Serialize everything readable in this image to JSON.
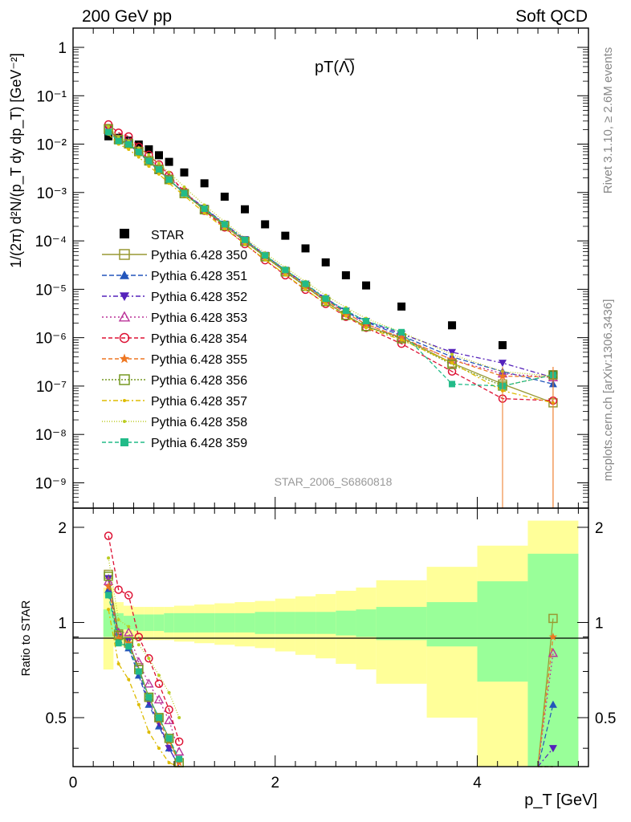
{
  "header": {
    "left": "200 GeV pp",
    "right": "Soft QCD",
    "side_rivet": "Rivet 3.1.10, ≥ 2.6M events",
    "side_mcplots": "mcplots.cern.ch [arXiv:1306.3436]"
  },
  "chart_data": {
    "type": "scatter",
    "title": "pT(Λ̅)",
    "analysis_label": "STAR_2006_S6860818",
    "xlabel": "p_T [GeV]",
    "ylabel": "1/(2π) d²N/(p_T dy dp_T) [GeV⁻²]",
    "ratio_ylabel": "Ratio to STAR",
    "xlim": [
      0,
      5.1
    ],
    "ylim": [
      3e-10,
      2.5
    ],
    "yscale": "log",
    "ratio_ylim": [
      0.35,
      2.3
    ],
    "x_ticks": [
      "0",
      "2",
      "4"
    ],
    "y_ticks": [
      "1",
      "10⁻¹",
      "10⁻²",
      "10⁻³",
      "10⁻⁴",
      "10⁻⁵",
      "10⁻⁶",
      "10⁻⁷",
      "10⁻⁸",
      "10⁻⁹"
    ],
    "ratio_ticks": [
      "0.5",
      "1",
      "2"
    ],
    "legend_position": "middle-left",
    "x": [
      0.35,
      0.45,
      0.55,
      0.65,
      0.75,
      0.85,
      0.95,
      1.1,
      1.3,
      1.5,
      1.7,
      1.9,
      2.1,
      2.3,
      2.5,
      2.7,
      2.9,
      3.25,
      3.75,
      4.25,
      4.75
    ],
    "reference": {
      "name": "STAR",
      "values": [
        0.0145,
        0.0135,
        0.0118,
        0.0098,
        0.0078,
        0.0059,
        0.0043,
        0.0026,
        0.00155,
        0.00082,
        0.00045,
        0.00022,
        0.000128,
        7e-05,
        3.6e-05,
        1.95e-05,
        1.2e-05,
        4.4e-06,
        1.8e-06,
        7e-07,
        1.75e-07
      ]
    },
    "ratio_band": {
      "x_edges": [
        0.3,
        0.4,
        0.5,
        0.6,
        0.7,
        0.8,
        0.9,
        1.0,
        1.2,
        1.4,
        1.6,
        1.8,
        2.0,
        2.2,
        2.4,
        2.6,
        2.8,
        3.0,
        3.5,
        4.0,
        4.5,
        5.0
      ],
      "green_half": [
        0.1,
        0.07,
        0.05,
        0.06,
        0.06,
        0.06,
        0.07,
        0.07,
        0.07,
        0.07,
        0.07,
        0.08,
        0.08,
        0.08,
        0.08,
        0.09,
        0.1,
        0.12,
        0.16,
        0.35,
        0.65
      ],
      "yellow_half": [
        0.29,
        0.16,
        0.13,
        0.12,
        0.12,
        0.12,
        0.12,
        0.13,
        0.14,
        0.15,
        0.16,
        0.17,
        0.19,
        0.21,
        0.23,
        0.26,
        0.29,
        0.36,
        0.5,
        0.75,
        1.1
      ]
    },
    "ratio_lines": [
      {
        "name": "Pythia 6.428 350",
        "x": [
          0.35,
          0.45,
          0.55,
          0.65,
          0.75,
          0.85,
          0.95,
          1.05
        ],
        "values": [
          1.42,
          0.92,
          0.86,
          0.72,
          0.58,
          0.5,
          0.43,
          0.36
        ],
        "tail": 1.03
      },
      {
        "name": "Pythia 6.428 351",
        "x": [
          0.35,
          0.45,
          0.55,
          0.65,
          0.75,
          0.85,
          0.95,
          1.05
        ],
        "values": [
          1.27,
          0.88,
          0.83,
          0.68,
          0.55,
          0.47,
          0.4,
          0.34
        ],
        "tail": 0.55
      },
      {
        "name": "Pythia 6.428 352",
        "x": [
          0.35,
          0.45,
          0.55,
          0.65,
          0.75,
          0.85,
          0.95,
          1.05
        ],
        "values": [
          1.38,
          0.9,
          0.88,
          0.7,
          0.56,
          0.48,
          0.4,
          0.34
        ],
        "tail": 0.4
      },
      {
        "name": "Pythia 6.428 353",
        "x": [
          0.35,
          0.45,
          0.55,
          0.65,
          0.75,
          0.85,
          0.95,
          1.05
        ],
        "values": [
          1.35,
          0.93,
          0.93,
          0.75,
          0.64,
          0.57,
          0.49,
          0.39
        ],
        "tail": 0.8
      },
      {
        "name": "Pythia 6.428 354",
        "x": [
          0.35,
          0.45,
          0.55,
          0.65,
          0.75,
          0.85,
          0.95,
          1.05
        ],
        "values": [
          1.88,
          1.27,
          1.22,
          0.9,
          0.77,
          0.64,
          0.53,
          0.42
        ],
        "tail": 0.3
      },
      {
        "name": "Pythia 6.428 355",
        "x": [
          0.35,
          0.45,
          0.55,
          0.65,
          0.75,
          0.85,
          0.95,
          1.05
        ],
        "values": [
          1.3,
          0.9,
          0.86,
          0.7,
          0.58,
          0.49,
          0.42,
          0.36
        ],
        "tail": 0.9
      },
      {
        "name": "Pythia 6.428 356",
        "x": [
          0.35,
          0.45,
          0.55,
          0.65,
          0.75,
          0.85,
          0.95,
          1.05
        ],
        "values": [
          1.4,
          0.91,
          0.87,
          0.71,
          0.58,
          0.5,
          0.43,
          0.36
        ],
        "tail": 0.3
      },
      {
        "name": "Pythia 6.428 357",
        "x": [
          0.35,
          0.45,
          0.55,
          0.65,
          0.75,
          0.85,
          0.95,
          1.05
        ],
        "values": [
          1.1,
          0.74,
          0.66,
          0.55,
          0.45,
          0.4,
          0.36,
          0.33
        ],
        "tail": 0.3
      },
      {
        "name": "Pythia 6.428 358",
        "x": [
          0.35,
          0.45,
          0.55,
          0.65,
          0.75,
          0.85,
          0.95,
          1.05
        ],
        "values": [
          1.6,
          1.02,
          0.97,
          0.85,
          0.77,
          0.68,
          0.6,
          0.5
        ],
        "tail": 0.3
      },
      {
        "name": "Pythia 6.428 359",
        "x": [
          0.35,
          0.45,
          0.55,
          0.65,
          0.75,
          0.85,
          0.95,
          1.05
        ],
        "values": [
          1.22,
          0.86,
          0.84,
          0.7,
          0.58,
          0.5,
          0.43,
          0.37
        ],
        "tail": 0.3
      }
    ],
    "series": [
      {
        "name": "Pythia 6.428 350",
        "color": "#999933",
        "marker": "square-open",
        "dash": "",
        "values": [
          0.021,
          0.0125,
          0.0101,
          0.0071,
          0.0045,
          0.003,
          0.00185,
          0.00095,
          0.00044,
          0.000205,
          9.8e-05,
          4.7e-05,
          2.3e-05,
          1.15e-05,
          5.6e-06,
          2.9e-06,
          1.7e-06,
          1e-06,
          3e-07,
          1.1e-07,
          4.5e-08
        ]
      },
      {
        "name": "Pythia 6.428 351",
        "color": "#2255bb",
        "marker": "triangle-up",
        "dash": "6,3",
        "values": [
          0.0185,
          0.0119,
          0.0098,
          0.0067,
          0.0043,
          0.0028,
          0.0018,
          0.00098,
          0.00047,
          0.00022,
          0.000105,
          5e-05,
          2.5e-05,
          1.25e-05,
          6.2e-06,
          3.4e-06,
          2.1e-06,
          1.1e-06,
          4e-07,
          2e-07,
          1.1e-07
        ]
      },
      {
        "name": "Pythia 6.428 352",
        "color": "#5522bb",
        "marker": "triangle-down",
        "dash": "6,3,2,3",
        "values": [
          0.02,
          0.0122,
          0.0104,
          0.0069,
          0.0044,
          0.0029,
          0.00182,
          0.001,
          0.00048,
          0.000225,
          0.000108,
          5.1e-05,
          2.5e-05,
          1.3e-05,
          6.5e-06,
          3.6e-06,
          2.2e-06,
          1.2e-06,
          5e-07,
          3e-07,
          1.5e-07
        ]
      },
      {
        "name": "Pythia 6.428 353",
        "color": "#bb3399",
        "marker": "triangle-open",
        "dash": "2,3",
        "values": [
          0.0195,
          0.0125,
          0.011,
          0.0074,
          0.005,
          0.0034,
          0.0021,
          0.00105,
          0.00045,
          0.000215,
          0.0001,
          4.9e-05,
          2.4e-05,
          1.2e-05,
          6e-06,
          3.2e-06,
          1.9e-06,
          1e-06,
          3.5e-07,
          1.8e-07,
          1.5e-07
        ]
      },
      {
        "name": "Pythia 6.428 354",
        "color": "#dd1133",
        "marker": "circle-open",
        "dash": "5,3",
        "values": [
          0.0255,
          0.0172,
          0.0144,
          0.0088,
          0.006,
          0.0038,
          0.0023,
          0.00105,
          0.00042,
          0.00019,
          8.6e-05,
          4e-05,
          1.95e-05,
          9.8e-06,
          5e-06,
          2.7e-06,
          1.6e-06,
          7.5e-07,
          2e-07,
          5.5e-08,
          5e-08
        ]
      },
      {
        "name": "Pythia 6.428 355",
        "color": "#ee7722",
        "marker": "star",
        "dash": "5,3",
        "values": [
          0.0188,
          0.0122,
          0.0101,
          0.0069,
          0.0045,
          0.0029,
          0.00181,
          0.00096,
          0.00046,
          0.000215,
          0.000103,
          4.9e-05,
          2.4e-05,
          1.2e-05,
          6e-06,
          3.2e-06,
          1.9e-06,
          1e-06,
          3.5e-07,
          1.6e-07,
          1.55e-07
        ]
      },
      {
        "name": "Pythia 6.428 356",
        "color": "#779922",
        "marker": "square-open",
        "dash": "2,2",
        "values": [
          0.0203,
          0.0123,
          0.0102,
          0.007,
          0.0045,
          0.003,
          0.00185,
          0.00095,
          0.00044,
          0.000205,
          9.8e-05,
          4.7e-05,
          2.3e-05,
          1.15e-05,
          5.6e-06,
          2.9e-06,
          1.7e-06,
          9.5e-07,
          2.8e-07,
          1e-07,
          1.7e-07
        ]
      },
      {
        "name": "Pythia 6.428 357",
        "color": "#ddbb00",
        "marker": "dot",
        "dash": "6,3,2,3",
        "values": [
          0.016,
          0.01,
          0.0078,
          0.0054,
          0.0035,
          0.0024,
          0.00155,
          0.00086,
          0.00038,
          0.00018,
          8.6e-05,
          4.1e-05,
          2e-05,
          1e-05,
          5e-06,
          2.8e-06,
          1.6e-06,
          9e-07,
          3e-07,
          8e-08,
          4.5e-08
        ]
      },
      {
        "name": "Pythia 6.428 358",
        "color": "#bbcc22",
        "marker": "dot",
        "dash": "1,2",
        "values": [
          0.023,
          0.0138,
          0.0115,
          0.0083,
          0.006,
          0.004,
          0.0026,
          0.0013,
          0.00055,
          0.00025,
          0.000115,
          5.6e-05,
          2.8e-05,
          1.45e-05,
          7.5e-06,
          4.2e-06,
          2.5e-06,
          1.3e-06,
          4.5e-07,
          2e-07,
          1.6e-07
        ]
      },
      {
        "name": "Pythia 6.428 359",
        "color": "#22bb88",
        "marker": "square",
        "dash": "5,3",
        "values": [
          0.0177,
          0.0116,
          0.0099,
          0.0069,
          0.0045,
          0.003,
          0.00185,
          0.00096,
          0.00046,
          0.00022,
          0.000105,
          5e-05,
          2.5e-05,
          1.3e-05,
          6.4e-06,
          3.6e-06,
          2.2e-06,
          1.3e-06,
          1.1e-07,
          1e-07,
          1.7e-07
        ]
      }
    ]
  }
}
